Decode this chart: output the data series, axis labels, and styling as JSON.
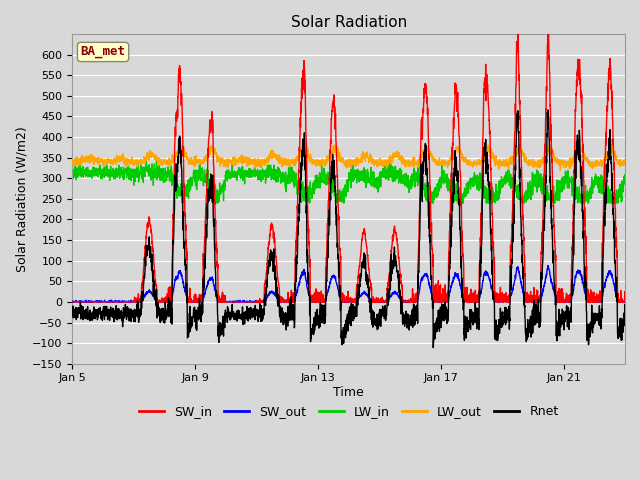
{
  "title": "Solar Radiation",
  "xlabel": "Time",
  "ylabel": "Solar Radiation (W/m2)",
  "ylim": [
    -150,
    650
  ],
  "yticks": [
    -150,
    -100,
    -50,
    0,
    50,
    100,
    150,
    200,
    250,
    300,
    350,
    400,
    450,
    500,
    550,
    600
  ],
  "xtick_labels": [
    "Jan 5",
    "Jan 9",
    "Jan 13",
    "Jan 17",
    "Jan 21"
  ],
  "xtick_positions": [
    0,
    4,
    8,
    12,
    16
  ],
  "n_days": 18,
  "pts_per_day": 144,
  "colors": {
    "SW_in": "#ff0000",
    "SW_out": "#0000ff",
    "LW_in": "#00cc00",
    "LW_out": "#ffa500",
    "Rnet": "#000000"
  },
  "lw": 1.0,
  "background_color": "#d8d8d8",
  "plot_bg_color": "#d8d8d8",
  "grid_color": "#ffffff",
  "ba_met_label": "BA_met",
  "ba_met_color": "#8b0000",
  "ba_met_bg": "#ffffcc",
  "legend_fontsize": 9,
  "title_fontsize": 11,
  "axis_label_fontsize": 9,
  "tick_fontsize": 8,
  "figsize": [
    6.4,
    4.8
  ],
  "dpi": 100
}
